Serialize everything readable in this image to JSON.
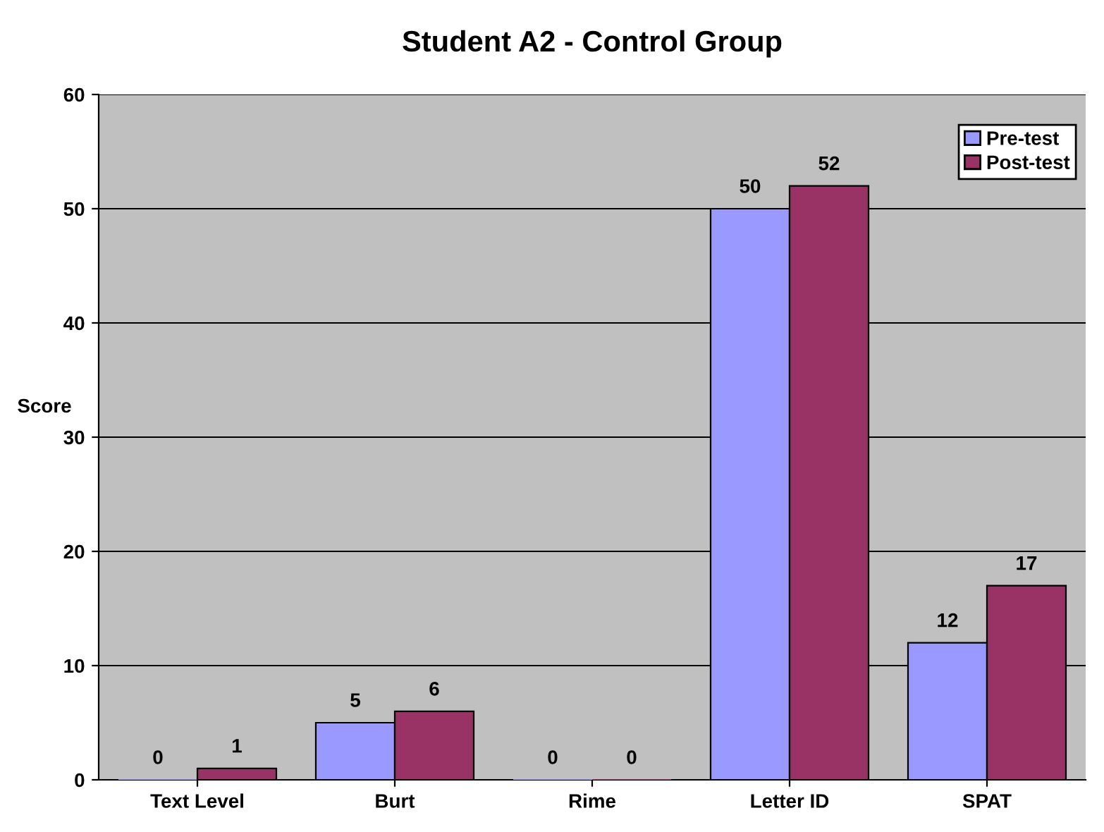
{
  "chart_data": {
    "type": "bar",
    "title": "Student A2 - Control Group",
    "ylabel": "Score",
    "categories": [
      "Text Level",
      "Burt",
      "Rime",
      "Letter ID",
      "SPAT"
    ],
    "series": [
      {
        "name": "Pre-test",
        "color": "#9999ff",
        "values": [
          0,
          5,
          0,
          50,
          12
        ]
      },
      {
        "name": "Post-test",
        "color": "#993366",
        "values": [
          1,
          6,
          0,
          52,
          17
        ]
      }
    ],
    "ylim": [
      0,
      60
    ],
    "yticks": [
      0,
      10,
      20,
      30,
      40,
      50,
      60
    ],
    "grid": "y",
    "legend": "top right",
    "data_labels": true
  }
}
